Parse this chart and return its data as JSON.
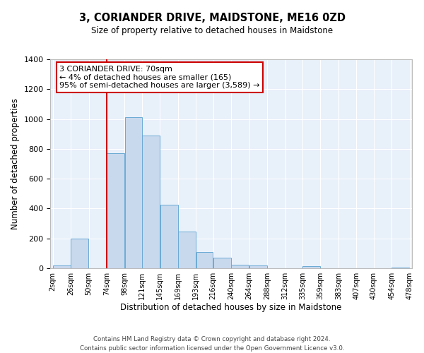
{
  "title": "3, CORIANDER DRIVE, MAIDSTONE, ME16 0ZD",
  "subtitle": "Size of property relative to detached houses in Maidstone",
  "xlabel": "Distribution of detached houses by size in Maidstone",
  "ylabel": "Number of detached properties",
  "bar_color": "#c8d9ee",
  "bar_edge_color": "#6aaad4",
  "background_color": "#e8f0fa",
  "bin_edges": [
    2,
    26,
    50,
    74,
    98,
    121,
    145,
    169,
    193,
    216,
    240,
    264,
    288,
    312,
    335,
    359,
    383,
    407,
    430,
    454,
    478
  ],
  "bin_labels": [
    "2sqm",
    "26sqm",
    "50sqm",
    "74sqm",
    "98sqm",
    "121sqm",
    "145sqm",
    "169sqm",
    "193sqm",
    "216sqm",
    "240sqm",
    "264sqm",
    "288sqm",
    "312sqm",
    "335sqm",
    "359sqm",
    "383sqm",
    "407sqm",
    "430sqm",
    "454sqm",
    "478sqm"
  ],
  "bar_heights": [
    20,
    200,
    0,
    770,
    1010,
    890,
    425,
    245,
    110,
    70,
    25,
    20,
    0,
    0,
    15,
    0,
    0,
    0,
    0,
    5
  ],
  "vline_x": 74,
  "vline_color": "#cc0000",
  "ylim": [
    0,
    1400
  ],
  "yticks": [
    0,
    200,
    400,
    600,
    800,
    1000,
    1200,
    1400
  ],
  "annotation_title": "3 CORIANDER DRIVE: 70sqm",
  "annotation_line1": "← 4% of detached houses are smaller (165)",
  "annotation_line2": "95% of semi-detached houses are larger (3,589) →",
  "annotation_box_color": "#ffffff",
  "annotation_box_edge": "#cc0000",
  "footer1": "Contains HM Land Registry data © Crown copyright and database right 2024.",
  "footer2": "Contains public sector information licensed under the Open Government Licence v3.0."
}
